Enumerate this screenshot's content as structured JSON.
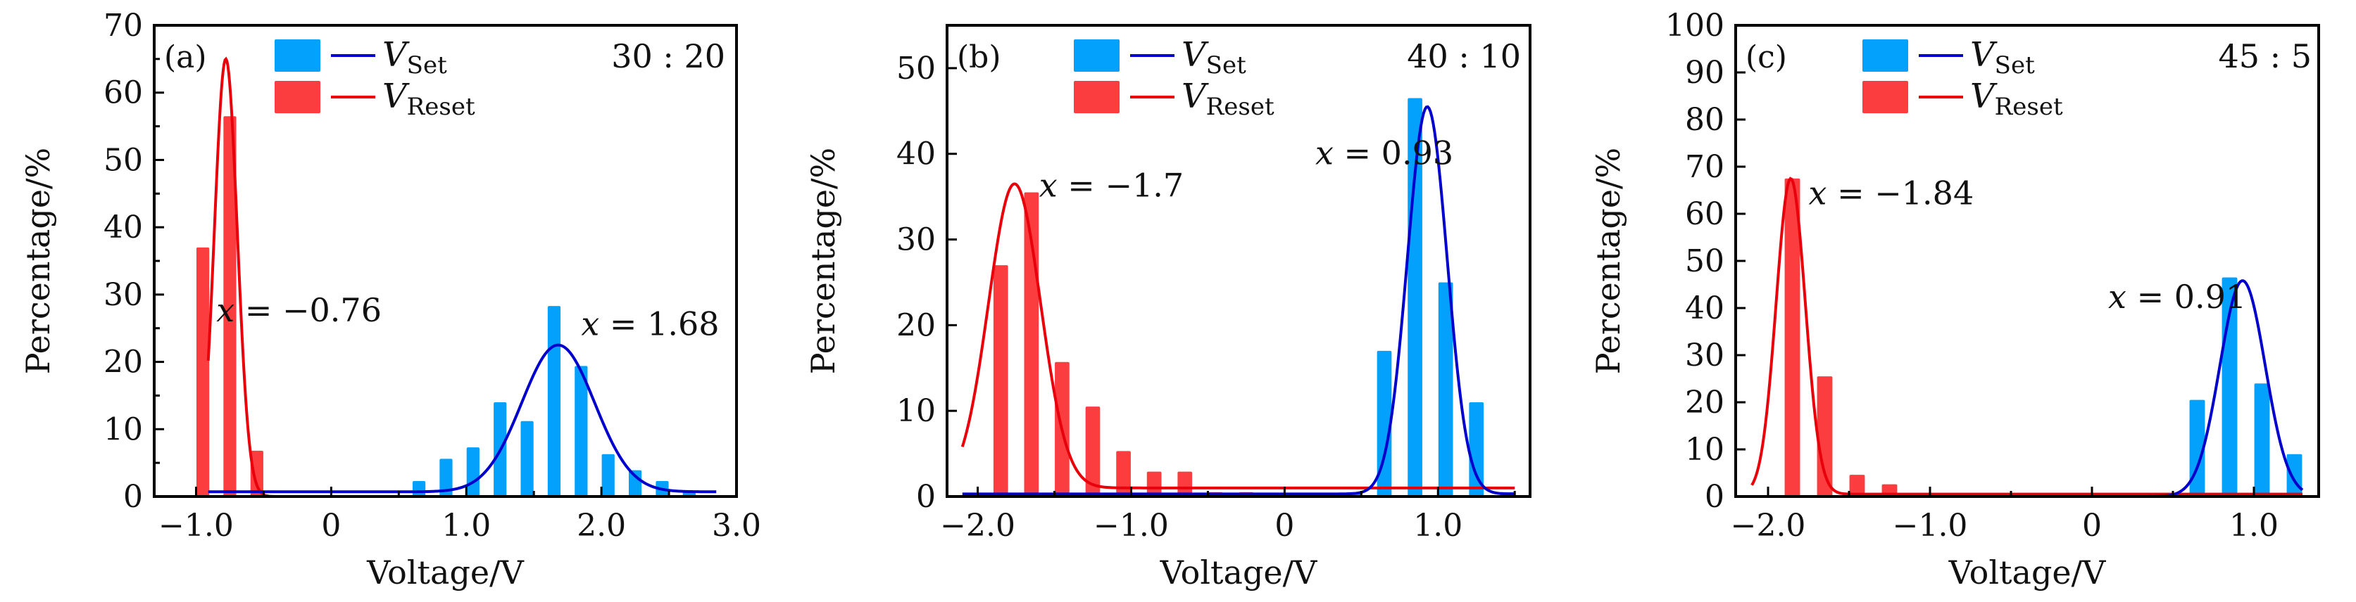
{
  "chart_data": [
    {
      "type": "bar",
      "panel_label": "(a)",
      "ratio_label": "30 : 20",
      "xlabel": "Voltage/V",
      "ylabel": "Percentage/%",
      "xlim": [
        -1.31,
        3.0
      ],
      "ylim": [
        0,
        70
      ],
      "xticks": [
        -1.0,
        0,
        1.0,
        2.0,
        3.0
      ],
      "xtick_labels": [
        "−1.0",
        "0",
        "1.0",
        "2.0",
        "3.0"
      ],
      "xminor": [
        -0.5,
        0.5,
        1.5,
        2.5
      ],
      "yticks": [
        0,
        10,
        20,
        30,
        40,
        50,
        60,
        70
      ],
      "ytick_labels": [
        "0",
        "10",
        "20",
        "30",
        "40",
        "50",
        "60",
        "70"
      ],
      "yminor": [
        5,
        15,
        25,
        35,
        45,
        55,
        65
      ],
      "legend_position": "top-center",
      "series": [
        {
          "name": "V_Reset",
          "legend_main": "V",
          "legend_sub": "Reset",
          "bar_color": "#fc3d40",
          "line_color": "#e8000b",
          "x": [
            -0.95,
            -0.75,
            -0.55
          ],
          "values": [
            37,
            56.5,
            6.8
          ],
          "fit": {
            "center": -0.78,
            "amplitude": 65,
            "width": 0.085,
            "offset": 0,
            "range": [
              -0.91,
              1.85
            ]
          },
          "annotation": {
            "var": "x",
            "text": " = −0.76",
            "x": -0.85,
            "y": 26
          }
        },
        {
          "name": "V_Set",
          "legend_main": "V",
          "legend_sub": "Set",
          "bar_color": "#03a1fc",
          "line_color": "#0000cc",
          "x": [
            0.65,
            0.85,
            1.05,
            1.25,
            1.45,
            1.65,
            1.85,
            2.05,
            2.25,
            2.45,
            2.65
          ],
          "values": [
            2.3,
            5.6,
            7.3,
            14,
            11.2,
            28.3,
            19.4,
            6.3,
            3.9,
            2.3,
            0.8
          ],
          "fit": {
            "center": 1.68,
            "amplitude": 21.8,
            "width": 0.27,
            "offset": 0.7,
            "range": [
              -0.91,
              2.85
            ]
          },
          "annotation": {
            "var": "x",
            "text": " = 1.68",
            "x": 1.85,
            "y": 24
          }
        }
      ]
    },
    {
      "type": "bar",
      "panel_label": "(b)",
      "ratio_label": "40 : 10",
      "xlabel": "Voltage/V",
      "ylabel": "Percentage/%",
      "xlim": [
        -2.2,
        1.6
      ],
      "ylim": [
        0,
        55
      ],
      "xticks": [
        -2.0,
        -1.0,
        0,
        1.0
      ],
      "xtick_labels": [
        "−2.0",
        "−1.0",
        "0",
        "1.0"
      ],
      "xminor": [
        -1.5,
        -0.5,
        0.5,
        1.5
      ],
      "yticks": [
        0,
        10,
        20,
        30,
        40,
        50
      ],
      "ytick_labels": [
        "0",
        "10",
        "20",
        "30",
        "40",
        "50"
      ],
      "yminor": [],
      "legend_position": "top-center",
      "series": [
        {
          "name": "V_Reset",
          "legend_main": "V",
          "legend_sub": "Reset",
          "bar_color": "#fc3d40",
          "line_color": "#e8000b",
          "x": [
            -1.85,
            -1.65,
            -1.45,
            -1.25,
            -1.05,
            -0.85,
            -0.65,
            -0.45,
            -0.25
          ],
          "values": [
            27,
            35.5,
            15.7,
            10.5,
            5.3,
            2.9,
            2.9,
            0.5,
            0.5
          ],
          "fit": {
            "center": -1.76,
            "amplitude": 35.5,
            "width": 0.17,
            "offset": 1.0,
            "range": [
              -2.1,
              1.5
            ]
          },
          "annotation": {
            "var": "x",
            "text": " = −1.7",
            "x": -1.6,
            "y": 35
          }
        },
        {
          "name": "V_Set",
          "legend_main": "V",
          "legend_sub": "Set",
          "bar_color": "#03a1fc",
          "line_color": "#0000cc",
          "x": [
            0.45,
            0.65,
            0.85,
            1.05,
            1.25,
            1.45
          ],
          "values": [
            0.5,
            17,
            46.5,
            25,
            11,
            0.5
          ],
          "fit": {
            "center": 0.93,
            "amplitude": 45.2,
            "width": 0.13,
            "offset": 0.3,
            "range": [
              -2.1,
              1.5
            ]
          },
          "annotation": {
            "var": "x",
            "text": " = 0.93",
            "x": 0.2,
            "y": 38.8
          }
        }
      ]
    },
    {
      "type": "bar",
      "panel_label": "(c)",
      "ratio_label": "45 : 5",
      "xlabel": "Voltage/V",
      "ylabel": "Percentage/%",
      "xlim": [
        -2.2,
        1.4
      ],
      "ylim": [
        0,
        100
      ],
      "xticks": [
        -2.0,
        -1.0,
        0,
        1.0
      ],
      "xtick_labels": [
        "−2.0",
        "−1.0",
        "0",
        "1.0"
      ],
      "xminor": [
        -1.5,
        -0.5,
        0.5
      ],
      "yticks": [
        0,
        10,
        20,
        30,
        40,
        50,
        60,
        70,
        80,
        90,
        100
      ],
      "ytick_labels": [
        "0",
        "10",
        "20",
        "30",
        "40",
        "50",
        "60",
        "70",
        "80",
        "90",
        "100"
      ],
      "yminor": [],
      "legend_position": "top-center",
      "series": [
        {
          "name": "V_Reset",
          "legend_main": "V",
          "legend_sub": "Reset",
          "bar_color": "#fc3d40",
          "line_color": "#e8000b",
          "x": [
            -1.85,
            -1.65,
            -1.45,
            -1.25
          ],
          "values": [
            67.5,
            25.5,
            4.6,
            2.6
          ],
          "fit": {
            "center": -1.86,
            "amplitude": 67,
            "width": 0.09,
            "offset": 0.5,
            "range": [
              -2.1,
              1.3
            ]
          },
          "annotation": {
            "var": "x",
            "text": " = −1.84",
            "x": -1.75,
            "y": 62
          }
        },
        {
          "name": "V_Set",
          "legend_main": "V",
          "legend_sub": "Set",
          "bar_color": "#03a1fc",
          "line_color": "#0000cc",
          "x": [
            0.65,
            0.85,
            1.05,
            1.25
          ],
          "values": [
            20.5,
            46.5,
            24,
            9
          ],
          "fit": {
            "center": 0.93,
            "amplitude": 45.8,
            "width": 0.14,
            "offset": 0,
            "range": [
              -2.1,
              1.3
            ]
          },
          "annotation": {
            "var": "x",
            "text": " = 0.91",
            "x": 0.1,
            "y": 40
          }
        }
      ]
    }
  ]
}
